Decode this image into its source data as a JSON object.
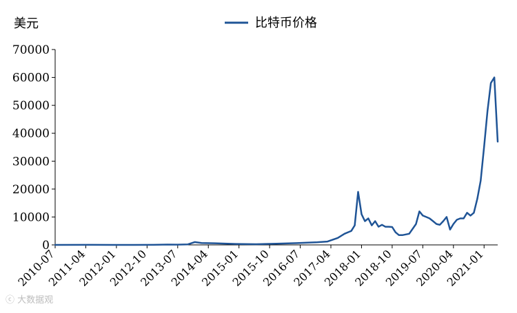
{
  "chart_data": {
    "type": "line",
    "title": "",
    "xlabel": "",
    "ylabel": "美元",
    "ylim": [
      0,
      70000
    ],
    "xlim": [
      "2010-07",
      "2021-05"
    ],
    "y_ticks": [
      0,
      10000,
      20000,
      30000,
      40000,
      50000,
      60000,
      70000
    ],
    "x_tick_labels": [
      "2010-07",
      "2011-04",
      "2012-01",
      "2012-10",
      "2013-07",
      "2014-04",
      "2015-01",
      "2015-10",
      "2016-07",
      "2017-04",
      "2018-01",
      "2018-10",
      "2019-07",
      "2020-04",
      "2021-01"
    ],
    "legend": {
      "position": "top-center",
      "entries": [
        "比特币价格"
      ]
    },
    "grid": false,
    "series_color": "#1f5496",
    "series": [
      {
        "name": "比特币价格",
        "x": [
          "2010-07",
          "2011-06",
          "2011-12",
          "2012-06",
          "2012-12",
          "2013-04",
          "2013-07",
          "2013-10",
          "2013-12",
          "2014-02",
          "2014-06",
          "2014-12",
          "2015-06",
          "2015-12",
          "2016-06",
          "2016-12",
          "2017-03",
          "2017-06",
          "2017-08",
          "2017-10",
          "2017-11",
          "2017-12",
          "2018-01",
          "2018-02",
          "2018-03",
          "2018-04",
          "2018-05",
          "2018-06",
          "2018-07",
          "2018-08",
          "2018-09",
          "2018-10",
          "2018-11",
          "2018-12",
          "2019-01",
          "2019-03",
          "2019-05",
          "2019-06",
          "2019-07",
          "2019-08",
          "2019-09",
          "2019-10",
          "2019-11",
          "2019-12",
          "2020-01",
          "2020-02",
          "2020-03",
          "2020-04",
          "2020-05",
          "2020-06",
          "2020-07",
          "2020-08",
          "2020-09",
          "2020-10",
          "2020-11",
          "2020-12",
          "2021-01",
          "2021-02",
          "2021-03",
          "2021-04",
          "2021-05"
        ],
        "values": [
          0,
          15,
          3,
          6,
          13,
          130,
          90,
          200,
          1000,
          700,
          600,
          350,
          250,
          430,
          650,
          950,
          1200,
          2500,
          4000,
          5000,
          7000,
          19000,
          11000,
          8500,
          9500,
          7000,
          8500,
          6500,
          7200,
          6500,
          6500,
          6400,
          4500,
          3500,
          3500,
          4000,
          7500,
          12000,
          10500,
          10000,
          9500,
          8500,
          7500,
          7200,
          8500,
          10000,
          5500,
          7500,
          9000,
          9500,
          9500,
          11500,
          10500,
          11500,
          16500,
          23000,
          35000,
          48000,
          58000,
          60000,
          37000
        ]
      }
    ]
  },
  "watermark": "ⓒ 大数据观"
}
